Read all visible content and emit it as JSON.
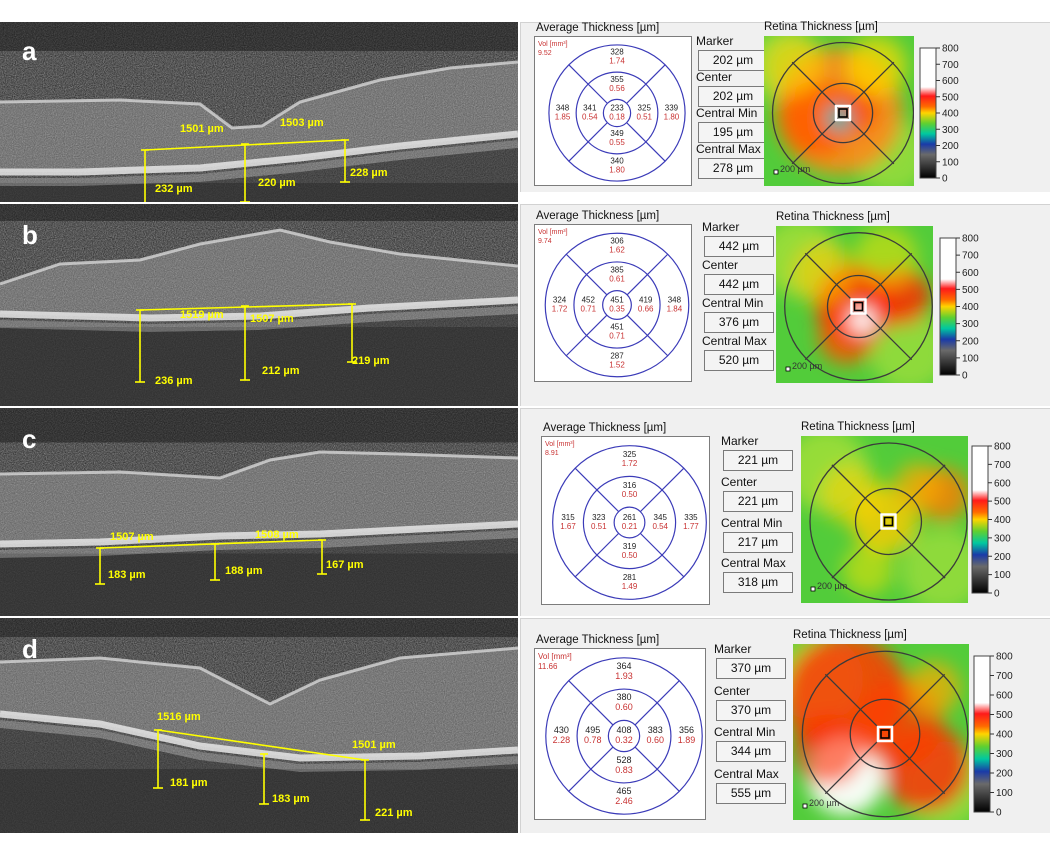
{
  "colors": {
    "ring_line": "#3b3bb8",
    "thickness_num": "#222222",
    "volume_num": "#c83232",
    "vol_label": "#c83232",
    "oct_annotation": "#ffff00",
    "map_grid": "#3b3b3b"
  },
  "panels": [
    {
      "label": "a",
      "oct": {
        "distance_labels": [
          "1501 µm",
          "1503 µm"
        ],
        "depth_labels": [
          "232 µm",
          "220 µm",
          "228 µm"
        ]
      },
      "avg_title": "Average Thickness [µm]",
      "vol_label": "Vol [mm³]",
      "vol_value": "9.52",
      "sectors": {
        "outer_sup": {
          "t": "328",
          "v": "1.74"
        },
        "inner_sup": {
          "t": "355",
          "v": "0.56"
        },
        "outer_temp": {
          "t": "348",
          "v": "1.85"
        },
        "inner_temp": {
          "t": "341",
          "v": "0.54"
        },
        "center": {
          "t": "233",
          "v": "0.18"
        },
        "inner_nas": {
          "t": "325",
          "v": "0.51"
        },
        "outer_nas": {
          "t": "339",
          "v": "1.80"
        },
        "inner_inf": {
          "t": "349",
          "v": "0.55"
        },
        "outer_inf": {
          "t": "340",
          "v": "1.80"
        }
      },
      "marker_label": "Marker",
      "marker_value": "202 µm",
      "center_label": "Center",
      "center_value": "202 µm",
      "central_min_label": "Central Min",
      "central_min_value": "195 µm",
      "central_max_label": "Central Max",
      "central_max_value": "278 µm",
      "map_title": "Retina Thickness [µm]",
      "map_scale_label": "200 µm",
      "color_scale_ticks": [
        "800",
        "700",
        "600",
        "500",
        "400",
        "300",
        "200",
        "100",
        "0"
      ]
    },
    {
      "label": "b",
      "oct": {
        "distance_labels": [
          "1519 µm",
          "1507 µm"
        ],
        "depth_labels": [
          "236 µm",
          "212 µm",
          "219 µm"
        ]
      },
      "avg_title": "Average Thickness [µm]",
      "vol_label": "Vol [mm³]",
      "vol_value": "9.74",
      "sectors": {
        "outer_sup": {
          "t": "306",
          "v": "1.62"
        },
        "inner_sup": {
          "t": "385",
          "v": "0.61"
        },
        "outer_temp": {
          "t": "324",
          "v": "1.72"
        },
        "inner_temp": {
          "t": "452",
          "v": "0.71"
        },
        "center": {
          "t": "451",
          "v": "0.35"
        },
        "inner_nas": {
          "t": "419",
          "v": "0.66"
        },
        "outer_nas": {
          "t": "348",
          "v": "1.84"
        },
        "inner_inf": {
          "t": "451",
          "v": "0.71"
        },
        "outer_inf": {
          "t": "287",
          "v": "1.52"
        }
      },
      "marker_label": "Marker",
      "marker_value": "442 µm",
      "center_label": "Center",
      "center_value": "442 µm",
      "central_min_label": "Central Min",
      "central_min_value": "376 µm",
      "central_max_label": "Central Max",
      "central_max_value": "520 µm",
      "map_title": "Retina Thickness [µm]",
      "map_scale_label": "200 µm",
      "color_scale_ticks": [
        "800",
        "700",
        "600",
        "500",
        "400",
        "300",
        "200",
        "100",
        "0"
      ]
    },
    {
      "label": "c",
      "oct": {
        "distance_labels": [
          "1507 µm",
          "1508 µm"
        ],
        "depth_labels": [
          "183 µm",
          "188 µm",
          "167 µm"
        ]
      },
      "avg_title": "Average Thickness [µm]",
      "vol_label": "Vol [mm³]",
      "vol_value": "8.91",
      "sectors": {
        "outer_sup": {
          "t": "325",
          "v": "1.72"
        },
        "inner_sup": {
          "t": "316",
          "v": "0.50"
        },
        "outer_temp": {
          "t": "315",
          "v": "1.67"
        },
        "inner_temp": {
          "t": "323",
          "v": "0.51"
        },
        "center": {
          "t": "261",
          "v": "0.21"
        },
        "inner_nas": {
          "t": "345",
          "v": "0.54"
        },
        "outer_nas": {
          "t": "335",
          "v": "1.77"
        },
        "inner_inf": {
          "t": "319",
          "v": "0.50"
        },
        "outer_inf": {
          "t": "281",
          "v": "1.49"
        }
      },
      "marker_label": "Marker",
      "marker_value": "221 µm",
      "center_label": "Center",
      "center_value": "221 µm",
      "central_min_label": "Central Min",
      "central_min_value": "217 µm",
      "central_max_label": "Central Max",
      "central_max_value": "318 µm",
      "map_title": "Retina Thickness [µm]",
      "map_scale_label": "200 µm",
      "color_scale_ticks": [
        "800",
        "700",
        "600",
        "500",
        "400",
        "300",
        "200",
        "100",
        "0"
      ]
    },
    {
      "label": "d",
      "oct": {
        "distance_labels": [
          "1516 µm",
          "1501 µm"
        ],
        "depth_labels": [
          "181 µm",
          "183 µm",
          "221 µm"
        ]
      },
      "avg_title": "Average Thickness [µm]",
      "vol_label": "Vol [mm³]",
      "vol_value": "11.66",
      "sectors": {
        "outer_sup": {
          "t": "364",
          "v": "1.93"
        },
        "inner_sup": {
          "t": "380",
          "v": "0.60"
        },
        "outer_temp": {
          "t": "430",
          "v": "2.28"
        },
        "inner_temp": {
          "t": "495",
          "v": "0.78"
        },
        "center": {
          "t": "408",
          "v": "0.32"
        },
        "inner_nas": {
          "t": "383",
          "v": "0.60"
        },
        "outer_nas": {
          "t": "356",
          "v": "1.89"
        },
        "inner_inf": {
          "t": "528",
          "v": "0.83"
        },
        "outer_inf": {
          "t": "465",
          "v": "2.46"
        }
      },
      "marker_label": "Marker",
      "marker_value": "370 µm",
      "center_label": "Center",
      "center_value": "370 µm",
      "central_min_label": "Central Min",
      "central_min_value": "344 µm",
      "central_max_label": "Central Max",
      "central_max_value": "555 µm",
      "map_title": "Retina Thickness [µm]",
      "map_scale_label": "200 µm",
      "color_scale_ticks": [
        "800",
        "700",
        "600",
        "500",
        "400",
        "300",
        "200",
        "100",
        "0"
      ]
    }
  ]
}
